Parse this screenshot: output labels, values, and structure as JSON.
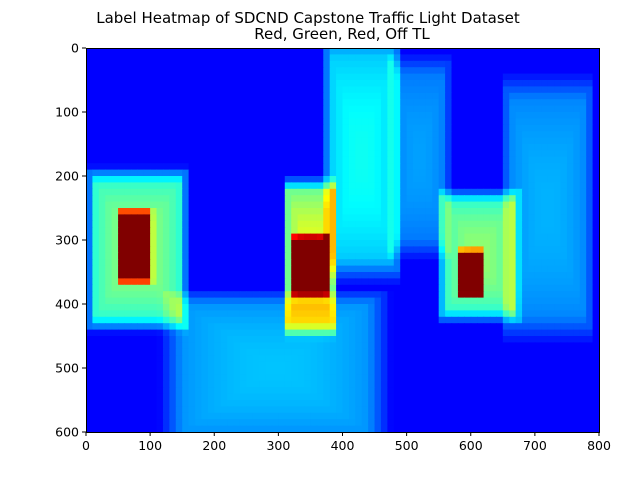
{
  "chart_data": {
    "type": "heatmap",
    "title": "Label Heatmap of SDCND Capstone Traffic Light Dataset",
    "subtitle": "Red, Green, Red, Off TL",
    "xlim": [
      0,
      800
    ],
    "ylim": [
      600,
      0
    ],
    "x_ticks": [
      0,
      100,
      200,
      300,
      400,
      500,
      600,
      700,
      800
    ],
    "y_ticks": [
      0,
      100,
      200,
      300,
      400,
      500,
      600
    ],
    "colormap": "jet",
    "grid": false,
    "background_value_color": "#00007f",
    "hotspots": [
      {
        "x": [
          15,
          145
        ],
        "y": [
          210,
          420
        ],
        "peak": 0.45
      },
      {
        "x": [
          55,
          100
        ],
        "y": [
          260,
          360
        ],
        "peak": 0.8
      },
      {
        "x": [
          315,
          385
        ],
        "y": [
          225,
          430
        ],
        "peak": 0.55
      },
      {
        "x": [
          325,
          375
        ],
        "y": [
          300,
          380
        ],
        "peak": 1.0
      },
      {
        "x": [
          560,
          665
        ],
        "y": [
          240,
          410
        ],
        "peak": 0.45
      },
      {
        "x": [
          585,
          615
        ],
        "y": [
          320,
          385
        ],
        "peak": 0.8
      },
      {
        "x": [
          380,
          480
        ],
        "y": [
          10,
          330
        ],
        "peak": 0.3
      },
      {
        "x": [
          480,
          560
        ],
        "y": [
          40,
          300
        ],
        "peak": 0.18
      },
      {
        "x": [
          660,
          780
        ],
        "y": [
          80,
          420
        ],
        "peak": 0.2
      },
      {
        "x": [
          150,
          440
        ],
        "y": [
          400,
          600
        ],
        "peak": 0.22
      }
    ]
  }
}
